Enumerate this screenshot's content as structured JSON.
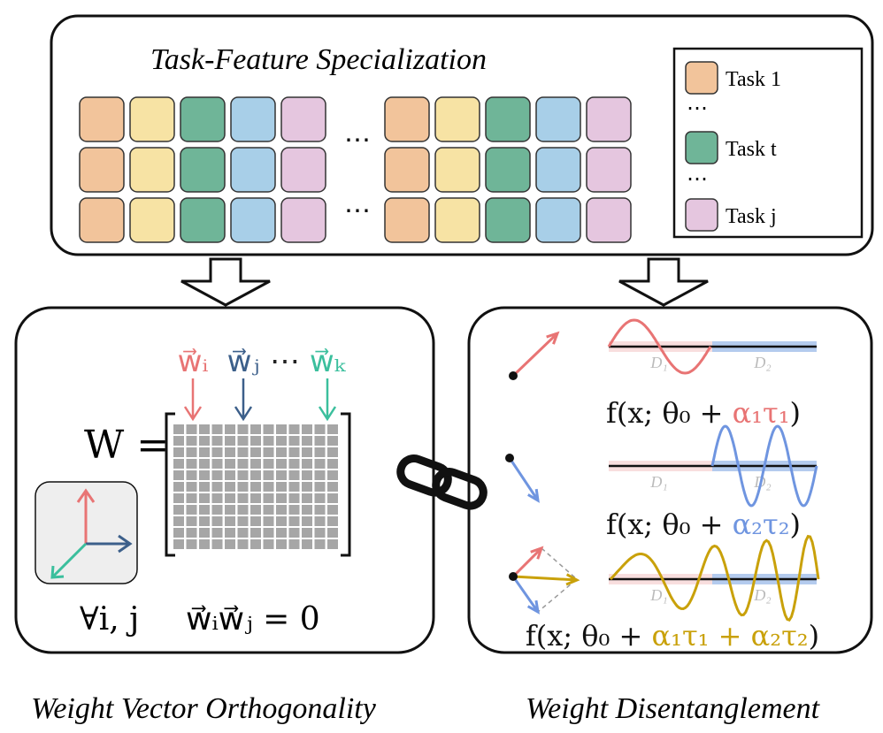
{
  "top": {
    "title": "Task-Feature Specialization",
    "ellipsis": "⋯",
    "task_colors": [
      "#f2c49b",
      "#f7e3a4",
      "#6fb598",
      "#a8cfe8",
      "#e5c6df"
    ],
    "legend": [
      {
        "label": "Task 1",
        "color": "#f2c49b"
      },
      {
        "label": "⋯"
      },
      {
        "label": "Task t",
        "color": "#6fb598"
      },
      {
        "label": "⋯"
      },
      {
        "label": "Task j",
        "color": "#e5c6df"
      }
    ]
  },
  "left": {
    "matrix_label": "W =",
    "vectors": [
      {
        "label": "w⃗ᵢ",
        "color": "#e87474"
      },
      {
        "label": "w⃗ⱼ",
        "color": "#3c5f8a"
      },
      {
        "label": "⋯",
        "color": "#222222"
      },
      {
        "label": "w⃗ₖ",
        "color": "#3bbf9d"
      }
    ],
    "condition": "∀i, j",
    "equation": "w⃗ᵢw⃗ⱼ = 0",
    "caption": "Weight Vector Orthogonality"
  },
  "right": {
    "domains": [
      "D₁",
      "D₂"
    ],
    "formulas": [
      [
        {
          "text": "f(x; θ₀ + ",
          "color": "#111111"
        },
        {
          "text": "α₁τ₁",
          "color": "#e87474"
        },
        {
          "text": ")",
          "color": "#111111"
        }
      ],
      [
        {
          "text": "f(x; θ₀ + ",
          "color": "#111111"
        },
        {
          "text": "α₂τ₂",
          "color": "#6f95e0"
        },
        {
          "text": ")",
          "color": "#111111"
        }
      ],
      [
        {
          "text": "f(x; θ₀ + ",
          "color": "#111111"
        },
        {
          "text": "α₁τ₁ + α₂τ₂",
          "color": "#c9a10a"
        },
        {
          "text": ")",
          "color": "#111111"
        }
      ]
    ],
    "caption": "Weight Disentanglement"
  }
}
